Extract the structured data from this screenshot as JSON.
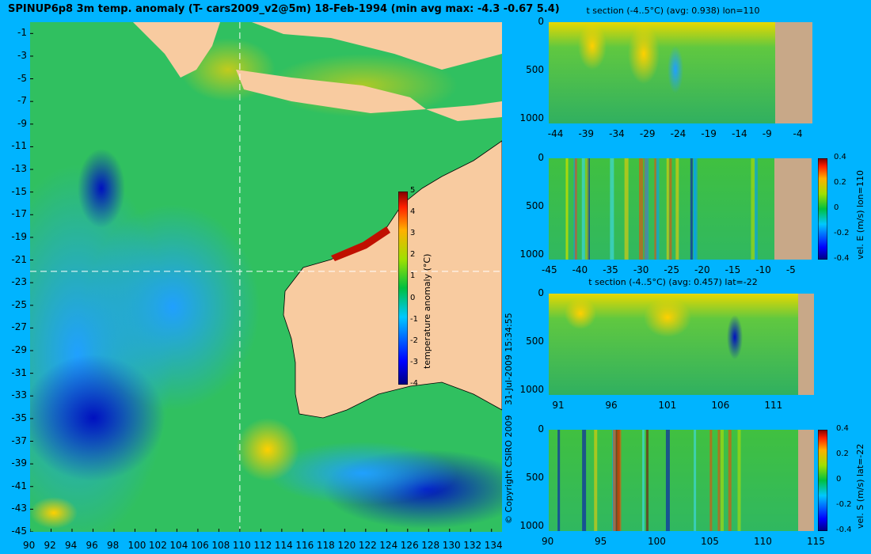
{
  "title": "SPINUP6p8 3m temp. anomaly (T- cars2009_v2@5m) 18-Feb-1994 (min avg max: -4.3 -0.67 5.4)",
  "copyright": "© Copyright CSIRO 2009",
  "timestamp": "31-Jul-2009 15:34:55",
  "colors": {
    "background": "#00b4ff",
    "land": "#f8cba0",
    "section_land": "#c8a888",
    "crosshair": "#ffffff"
  },
  "chart_data": [
    {
      "type": "heatmap",
      "name": "map",
      "title": "",
      "xlim": [
        90,
        135
      ],
      "ylim": [
        -45,
        0
      ],
      "x_ticks": [
        "90",
        "92",
        "94",
        "96",
        "98",
        "100",
        "102",
        "104",
        "106",
        "108",
        "110",
        "112",
        "114",
        "116",
        "118",
        "120",
        "122",
        "124",
        "126",
        "128",
        "130",
        "132",
        "134"
      ],
      "y_ticks": [
        "-1",
        "-3",
        "-5",
        "-7",
        "-9",
        "-11",
        "-13",
        "-15",
        "-17",
        "-19",
        "-21",
        "-23",
        "-25",
        "-27",
        "-29",
        "-31",
        "-33",
        "-35",
        "-37",
        "-39",
        "-41",
        "-43",
        "-45"
      ],
      "crosshair": {
        "lon": 110,
        "lat": -22
      },
      "colorbar": {
        "label": "temperature anomaly (°C)",
        "range": [
          -4,
          5
        ],
        "ticks": [
          "5",
          "4",
          "3",
          "2",
          "1",
          "0",
          "-1",
          "-2",
          "-3",
          "-4"
        ]
      }
    },
    {
      "type": "heatmap",
      "name": "t-section-lon110",
      "title": "t section (-4..5°C) (avg: 0.938) lon=110",
      "xlim": [
        -45,
        -2
      ],
      "ylim": [
        1050,
        0
      ],
      "x_ticks": [
        "-44",
        "-39",
        "-34",
        "-29",
        "-24",
        "-19",
        "-14",
        "-9",
        "-4"
      ],
      "y_ticks": [
        "0",
        "500",
        "1000"
      ]
    },
    {
      "type": "heatmap",
      "name": "vel-e-section-lon110",
      "title": "",
      "xlim": [
        -45,
        -2
      ],
      "ylim": [
        1050,
        0
      ],
      "x_ticks": [
        "-45",
        "-40",
        "-35",
        "-30",
        "-25",
        "-20",
        "-15",
        "-10",
        "-5"
      ],
      "y_ticks": [
        "0",
        "500",
        "1000"
      ],
      "colorbar": {
        "label": "vel. E (m/s) lon=110",
        "range": [
          -0.4,
          0.4
        ],
        "ticks": [
          "0.4",
          "0.2",
          "0",
          "-0.2",
          "-0.4"
        ]
      }
    },
    {
      "type": "heatmap",
      "name": "t-section-lat-22",
      "title": "t section (-4..5°C) (avg: 0.457) lat=-22",
      "xlim": [
        90,
        115
      ],
      "ylim": [
        1050,
        0
      ],
      "x_ticks": [
        "91",
        "96",
        "101",
        "106",
        "111"
      ],
      "y_ticks": [
        "0",
        "500",
        "1000"
      ]
    },
    {
      "type": "heatmap",
      "name": "vel-s-section-lat-22",
      "title": "",
      "xlim": [
        90,
        115
      ],
      "ylim": [
        1050,
        0
      ],
      "x_ticks": [
        "90",
        "95",
        "100",
        "105",
        "110",
        "115"
      ],
      "y_ticks": [
        "0",
        "500",
        "1000"
      ],
      "colorbar": {
        "label": "vel. S (m/s) lat=-22",
        "range": [
          -0.4,
          0.4
        ],
        "ticks": [
          "0.4",
          "0.2",
          "0",
          "-0.2",
          "-0.4"
        ]
      }
    }
  ]
}
